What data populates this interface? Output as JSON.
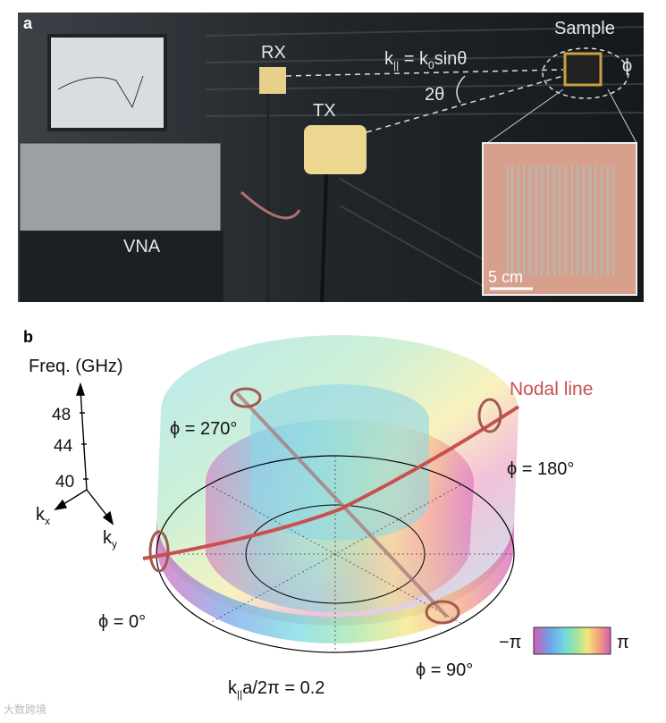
{
  "panel_a": {
    "label": "a",
    "sample": "Sample",
    "phi": "ϕ",
    "rx": "RX",
    "tx": "TX",
    "equation": {
      "k": "k",
      "k_sub": "||",
      "eq": " = k",
      "k0_sub": "0",
      "rest": "sinθ"
    },
    "angle": "2θ",
    "vna": "VNA",
    "scale": "5 cm"
  },
  "panel_b": {
    "label": "b",
    "axis_title": "Freq. (GHz)",
    "ticks": [
      "48",
      "44",
      "40"
    ],
    "kx": {
      "base": "k",
      "sub": "x"
    },
    "ky": {
      "base": "k",
      "sub": "y"
    },
    "nodal_line": "Nodal line",
    "phi_labels": [
      "ϕ = 270°",
      "ϕ = 180°",
      "ϕ = 0°",
      "ϕ = 90°"
    ],
    "radius_label": {
      "k": "k",
      "sub": "||",
      "rest": "a/2π = 0.2"
    },
    "colorbar": {
      "min": "−π",
      "max": "π"
    }
  },
  "watermark": "大数跨境"
}
